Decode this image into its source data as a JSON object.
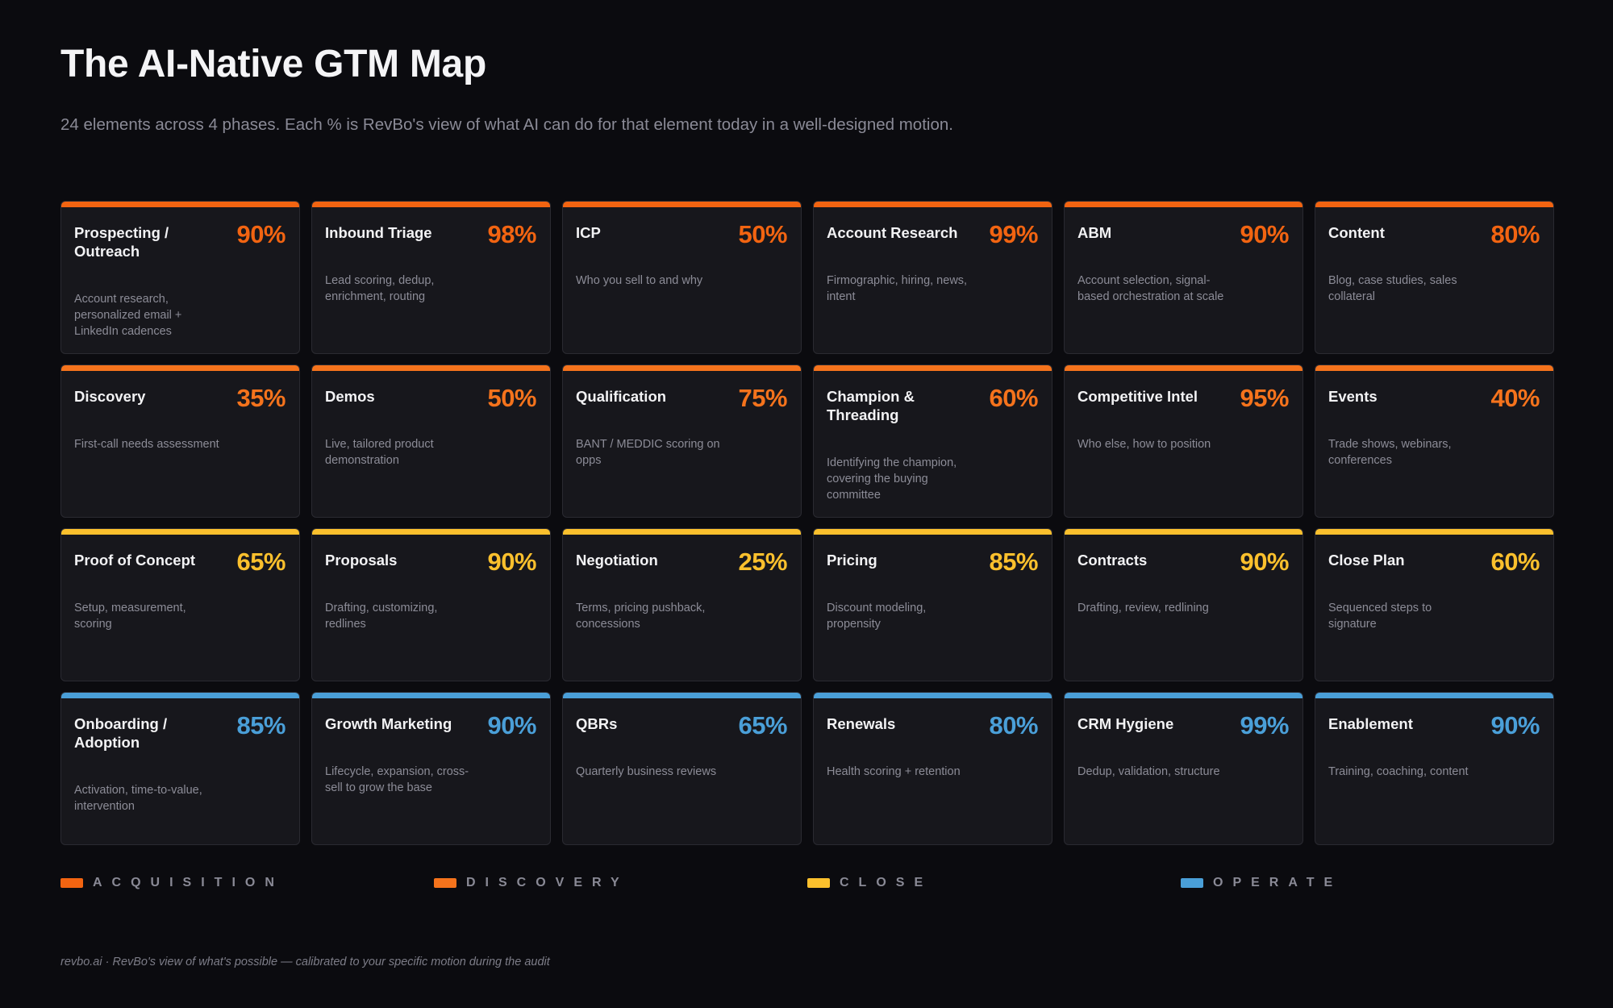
{
  "title": "The AI-Native GTM Map",
  "subtitle": "24 elements across 4 phases. Each % is RevBo's view of what AI can do for that element today in a well-designed motion.",
  "phase_colors": {
    "acquisition": "#f26411",
    "discovery": "#f5731c",
    "close": "#fbc02d",
    "operate": "#4a9fd8"
  },
  "cards": [
    {
      "title": "Prospecting / Outreach",
      "percent": "90%",
      "description": "Account research, personalized email + LinkedIn cadences",
      "phase": "acquisition"
    },
    {
      "title": "Inbound Triage",
      "percent": "98%",
      "description": "Lead scoring, dedup, enrichment, routing",
      "phase": "acquisition"
    },
    {
      "title": "ICP",
      "percent": "50%",
      "description": "Who you sell to and why",
      "phase": "acquisition"
    },
    {
      "title": "Account Research",
      "percent": "99%",
      "description": "Firmographic, hiring, news, intent",
      "phase": "acquisition"
    },
    {
      "title": "ABM",
      "percent": "90%",
      "description": "Account selection, signal-based orchestration at scale",
      "phase": "acquisition"
    },
    {
      "title": "Content",
      "percent": "80%",
      "description": "Blog, case studies, sales collateral",
      "phase": "acquisition"
    },
    {
      "title": "Discovery",
      "percent": "35%",
      "description": "First-call needs assessment",
      "phase": "discovery"
    },
    {
      "title": "Demos",
      "percent": "50%",
      "description": "Live, tailored product demonstration",
      "phase": "discovery"
    },
    {
      "title": "Qualification",
      "percent": "75%",
      "description": "BANT / MEDDIC scoring on opps",
      "phase": "discovery"
    },
    {
      "title": "Champion & Threading",
      "percent": "60%",
      "description": "Identifying the champion, covering the buying committee",
      "phase": "discovery"
    },
    {
      "title": "Competitive Intel",
      "percent": "95%",
      "description": "Who else, how to position",
      "phase": "discovery"
    },
    {
      "title": "Events",
      "percent": "40%",
      "description": "Trade shows, webinars, conferences",
      "phase": "discovery"
    },
    {
      "title": "Proof of Concept",
      "percent": "65%",
      "description": "Setup, measurement, scoring",
      "phase": "close"
    },
    {
      "title": "Proposals",
      "percent": "90%",
      "description": "Drafting, customizing, redlines",
      "phase": "close"
    },
    {
      "title": "Negotiation",
      "percent": "25%",
      "description": "Terms, pricing pushback, concessions",
      "phase": "close"
    },
    {
      "title": "Pricing",
      "percent": "85%",
      "description": "Discount modeling, propensity",
      "phase": "close"
    },
    {
      "title": "Contracts",
      "percent": "90%",
      "description": "Drafting, review, redlining",
      "phase": "close"
    },
    {
      "title": "Close Plan",
      "percent": "60%",
      "description": "Sequenced steps to signature",
      "phase": "close"
    },
    {
      "title": "Onboarding / Adoption",
      "percent": "85%",
      "description": "Activation, time-to-value, intervention",
      "phase": "operate"
    },
    {
      "title": "Growth Marketing",
      "percent": "90%",
      "description": "Lifecycle, expansion, cross-sell to grow the base",
      "phase": "operate"
    },
    {
      "title": "QBRs",
      "percent": "65%",
      "description": "Quarterly business reviews",
      "phase": "operate"
    },
    {
      "title": "Renewals",
      "percent": "80%",
      "description": "Health scoring + retention",
      "phase": "operate"
    },
    {
      "title": "CRM Hygiene",
      "percent": "99%",
      "description": "Dedup, validation, structure",
      "phase": "operate"
    },
    {
      "title": "Enablement",
      "percent": "90%",
      "description": "Training, coaching, content",
      "phase": "operate"
    }
  ],
  "legend": [
    {
      "label": "ACQUISITION",
      "phase": "acquisition"
    },
    {
      "label": "DISCOVERY",
      "phase": "discovery"
    },
    {
      "label": "CLOSE",
      "phase": "close"
    },
    {
      "label": "OPERATE",
      "phase": "operate"
    }
  ],
  "footer": "revbo.ai · RevBo's view of what's possible — calibrated to your specific motion during the audit"
}
